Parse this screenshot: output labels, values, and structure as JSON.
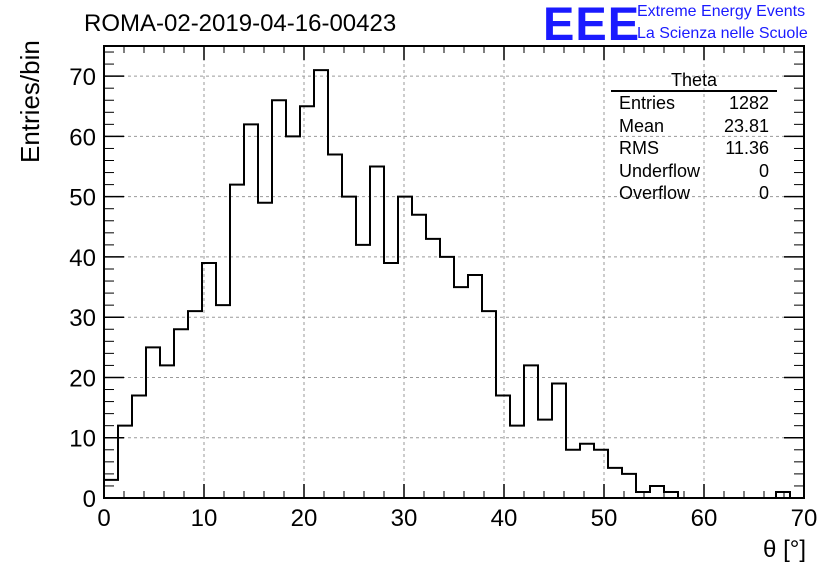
{
  "header": {
    "title": "ROMA-02-2019-04-16-00423",
    "logo_text": "EEE",
    "logo_line1": "Extreme Energy Events",
    "logo_line2": "La Scienza nelle Scuole"
  },
  "stats": {
    "title": "Theta",
    "rows": [
      {
        "label": "Entries",
        "value": "1282"
      },
      {
        "label": "Mean",
        "value": "23.81"
      },
      {
        "label": "RMS",
        "value": "11.36"
      },
      {
        "label": "Underflow",
        "value": "0"
      },
      {
        "label": "Overflow",
        "value": "0"
      }
    ]
  },
  "colors": {
    "line": "#000000",
    "grid": "#9a9a9a",
    "logo": "#1a1aff"
  },
  "chart_data": {
    "type": "histogram",
    "title": "ROMA-02-2019-04-16-00423",
    "xlabel": "θ [°]",
    "ylabel": "Entries/bin",
    "xlim": [
      0,
      70
    ],
    "ylim": [
      0,
      75
    ],
    "grid": true,
    "bin_width": 1.4,
    "bin_edges_start": 0,
    "values": [
      3,
      12,
      17,
      25,
      22,
      28,
      31,
      39,
      32,
      52,
      62,
      49,
      66,
      60,
      65,
      71,
      57,
      50,
      42,
      55,
      39,
      50,
      47,
      43,
      40,
      35,
      37,
      31,
      17,
      12,
      22,
      13,
      19,
      8,
      9,
      8,
      5,
      4,
      1,
      2,
      1,
      0,
      0,
      0,
      0,
      0,
      0,
      0,
      1,
      0
    ],
    "xticks": [
      0,
      10,
      20,
      30,
      40,
      50,
      60,
      70
    ],
    "yticks": [
      0,
      10,
      20,
      30,
      40,
      50,
      60,
      70
    ]
  }
}
